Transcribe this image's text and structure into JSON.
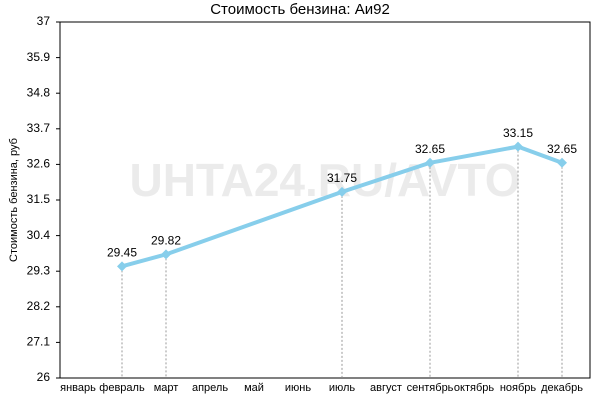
{
  "chart_data": {
    "type": "line",
    "title": "Стоимость бензина: Аи92",
    "y_label": "Стоимость бензина, руб",
    "watermark": "UHTA24.RU/AVTO",
    "categories": [
      "январь",
      "февраль",
      "март",
      "апрель",
      "май",
      "июнь",
      "июль",
      "август",
      "сентябрь",
      "октябрь",
      "ноябрь",
      "декабрь"
    ],
    "series": [
      {
        "name": "Аи92",
        "color": "#87ceeb",
        "values": [
          null,
          29.45,
          29.82,
          null,
          null,
          null,
          31.75,
          null,
          32.65,
          null,
          33.15,
          32.65
        ]
      }
    ],
    "connect_gaps": true,
    "ylim": [
      26,
      37
    ],
    "yticks": [
      26,
      27.1,
      28.2,
      29.3,
      30.4,
      31.5,
      32.6,
      33.7,
      34.8,
      35.9,
      37
    ],
    "drop_lines": true
  }
}
